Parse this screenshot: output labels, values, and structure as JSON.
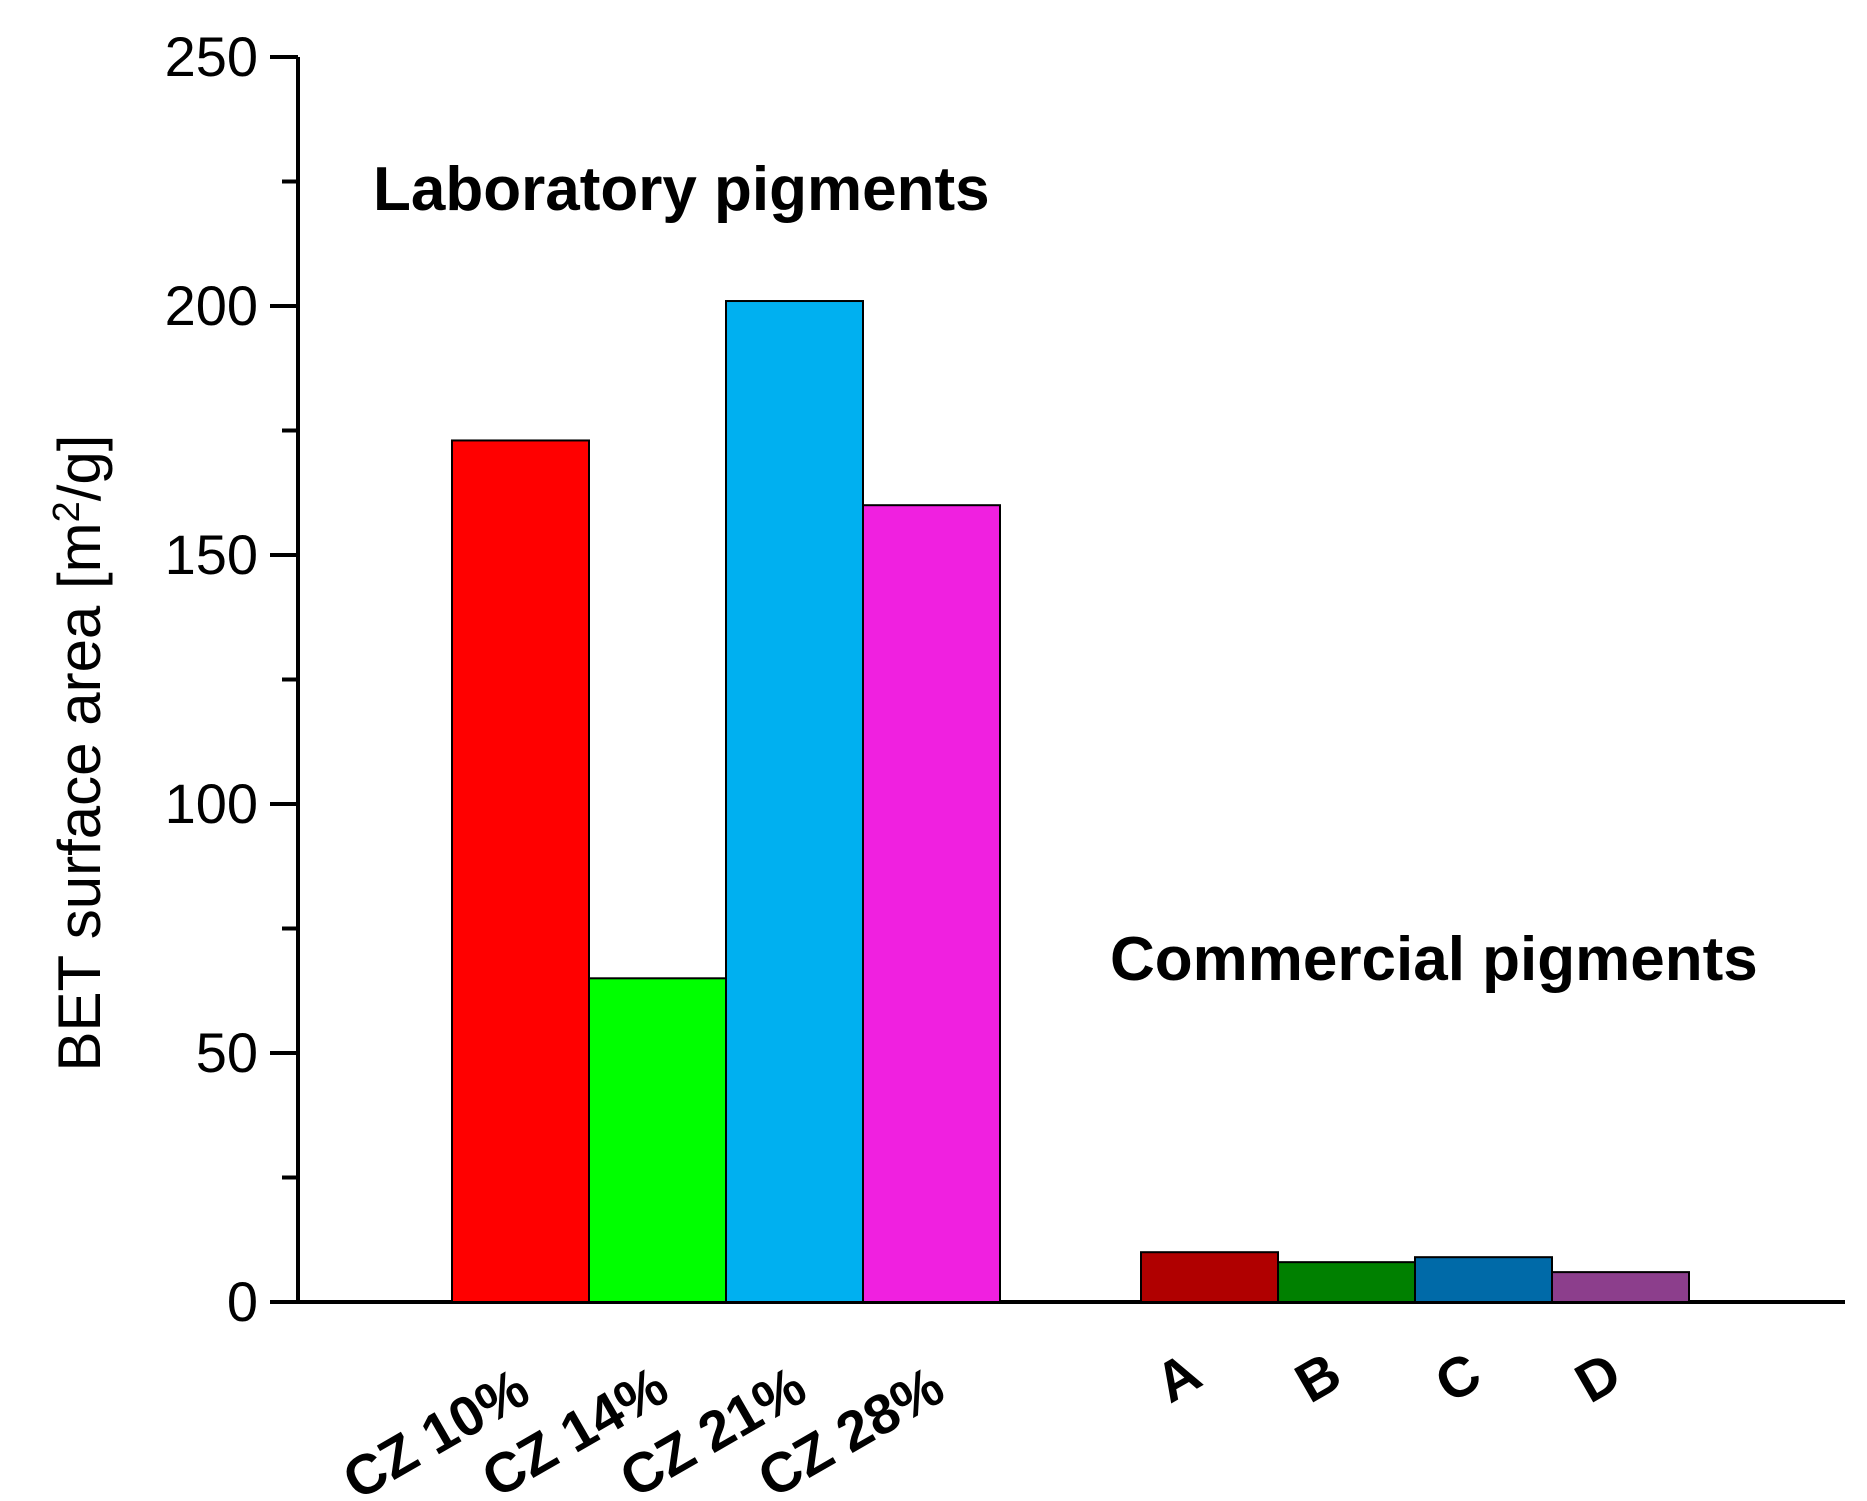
{
  "chart_data": {
    "type": "bar",
    "ylabel_text": "BET surface area [m",
    "ylabel_sup": "2",
    "ylabel_tail": "/g]",
    "ylim": [
      0,
      250
    ],
    "yticks": [
      0,
      50,
      100,
      150,
      200,
      250
    ],
    "grid": false,
    "categories": [
      "CZ 10%",
      "CZ 14%",
      "CZ 21%",
      "CZ 28%",
      "A",
      "B",
      "C",
      "D"
    ],
    "values": [
      173,
      65,
      201,
      160,
      10,
      8,
      9,
      6
    ],
    "colors": [
      "#ff0000",
      "#00ff00",
      "#00b0f0",
      "#f020e0",
      "#b00000",
      "#008000",
      "#006aa8",
      "#8c3e8c"
    ],
    "groups": [
      {
        "label": "Laboratory pigments"
      },
      {
        "label": "Commercial pigments"
      }
    ]
  }
}
